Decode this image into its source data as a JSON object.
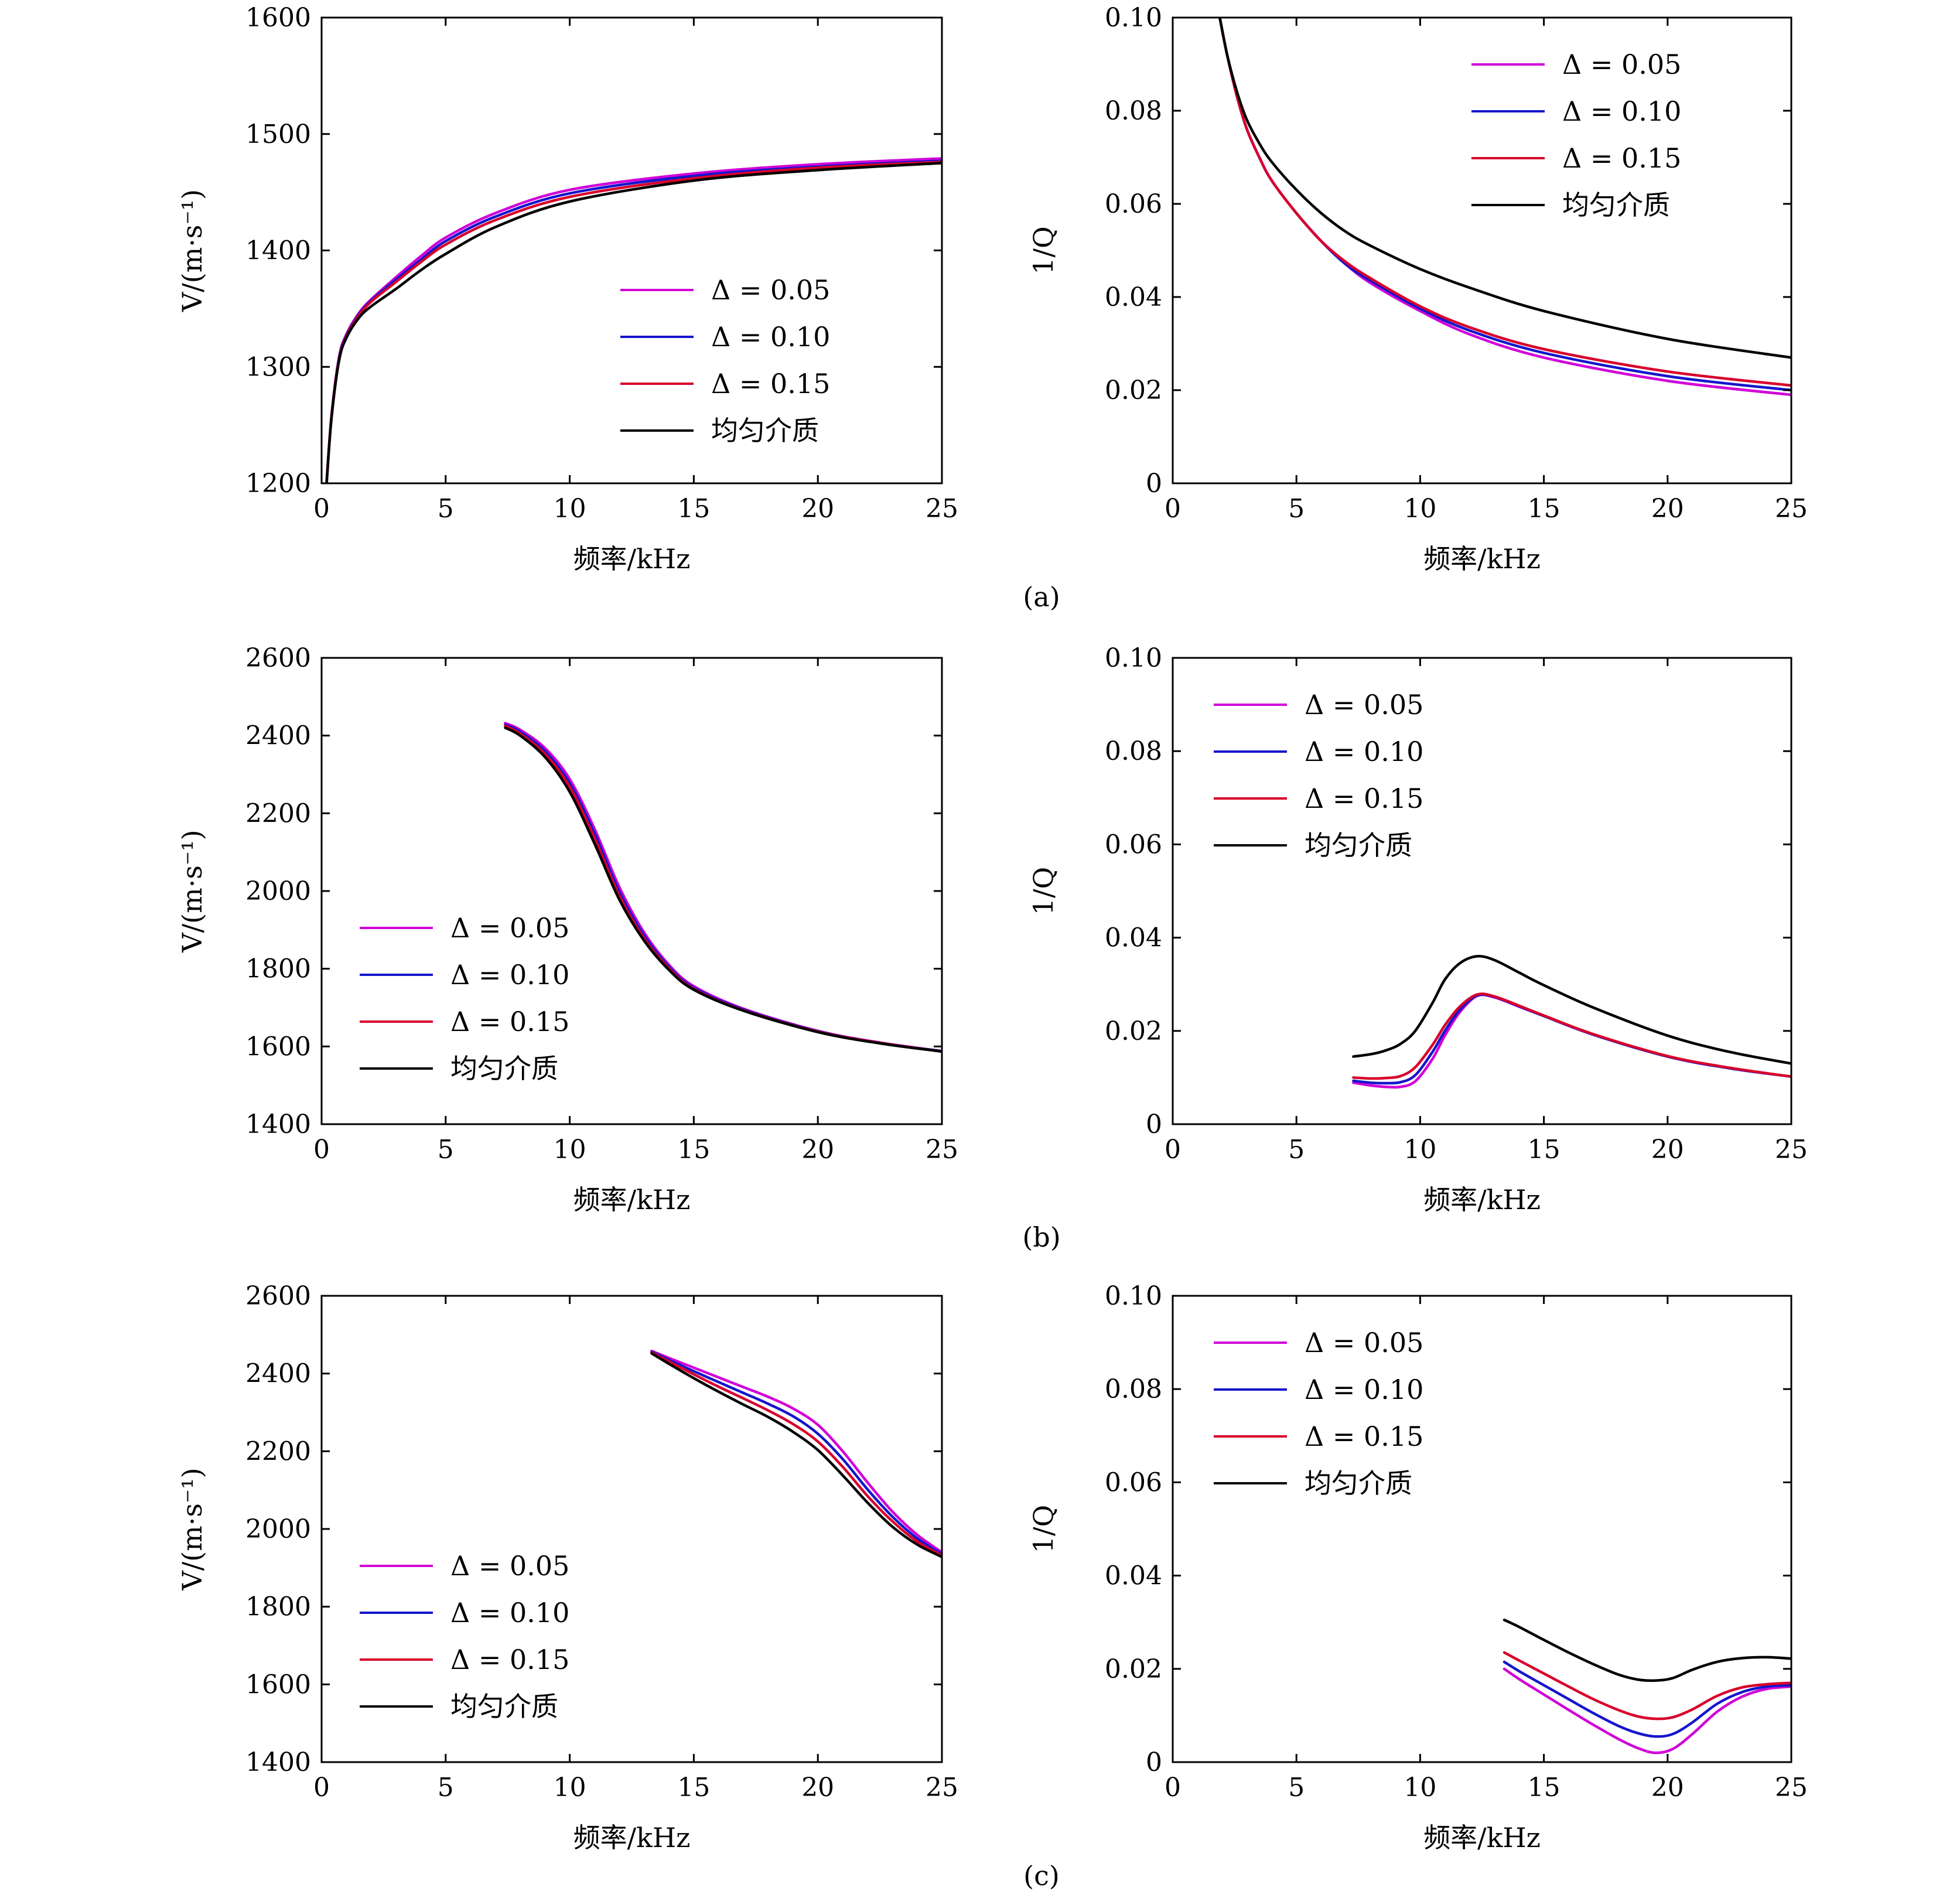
{
  "colors": {
    "delta_005": "#d100d8",
    "delta_010": "#1515cc",
    "delta_015": "#d8002a",
    "uniform": "#000000"
  },
  "captions": [
    "(a)",
    "(b)",
    "(c)"
  ],
  "chart_data": [
    {
      "id": "a-velocity",
      "type": "line",
      "row": 0,
      "col": 0,
      "xlabel": "频率/kHz",
      "ylabel": "V/(m·s⁻¹)",
      "xlim": [
        0,
        25
      ],
      "ylim": [
        1200,
        1600
      ],
      "xticks": [
        "0",
        "5",
        "10",
        "15",
        "20",
        "25"
      ],
      "yticks": [
        "1200",
        "1300",
        "1400",
        "1500",
        "1600"
      ],
      "xtick_values": [
        0,
        5,
        10,
        15,
        20,
        25
      ],
      "ytick_values": [
        1200,
        1300,
        1400,
        1500,
        1600
      ],
      "legend_pos": "lower-right",
      "series": [
        {
          "name": "Δ = 0.05",
          "color": "#d100d8",
          "x": [
            0.2,
            0.4,
            0.7,
            1,
            1.5,
            2,
            3,
            4,
            5,
            7,
            10,
            15,
            20,
            25
          ],
          "y": [
            1200,
            1258,
            1308,
            1328,
            1346,
            1358,
            1377,
            1395,
            1411,
            1432,
            1452,
            1466,
            1474,
            1479
          ]
        },
        {
          "name": "Δ = 0.10",
          "color": "#1515cc",
          "x": [
            0.2,
            0.4,
            0.7,
            1,
            1.5,
            2,
            3,
            4,
            5,
            7,
            10,
            15,
            20,
            25
          ],
          "y": [
            1200,
            1257,
            1307,
            1327,
            1345,
            1357,
            1375,
            1392,
            1408,
            1429,
            1449,
            1464,
            1472,
            1477
          ]
        },
        {
          "name": "Δ = 0.15",
          "color": "#d8002a",
          "x": [
            0.2,
            0.4,
            0.7,
            1,
            1.5,
            2,
            3,
            4,
            5,
            7,
            10,
            15,
            20,
            25
          ],
          "y": [
            1200,
            1257,
            1306,
            1326,
            1344,
            1356,
            1373,
            1390,
            1405,
            1426,
            1446,
            1462,
            1471,
            1476
          ]
        },
        {
          "name": "均匀介质",
          "color": "#000000",
          "x": [
            0.2,
            0.4,
            0.7,
            1,
            1.5,
            2,
            3,
            4,
            5,
            7,
            10,
            15,
            20,
            25
          ],
          "y": [
            1200,
            1256,
            1305,
            1325,
            1342,
            1352,
            1367,
            1383,
            1397,
            1420,
            1442,
            1460,
            1469,
            1475
          ]
        }
      ]
    },
    {
      "id": "a-attenuation",
      "type": "line",
      "row": 0,
      "col": 1,
      "xlabel": "频率/kHz",
      "ylabel": "1/Q",
      "xlim": [
        0,
        25
      ],
      "ylim": [
        0,
        0.1
      ],
      "xticks": [
        "0",
        "5",
        "10",
        "15",
        "20",
        "25"
      ],
      "yticks": [
        "0",
        "0.02",
        "0.04",
        "0.06",
        "0.08",
        "0.10"
      ],
      "xtick_values": [
        0,
        5,
        10,
        15,
        20,
        25
      ],
      "ytick_values": [
        0,
        0.02,
        0.04,
        0.06,
        0.08,
        0.1
      ],
      "legend_pos": "upper-right",
      "series": [
        {
          "name": "Δ = 0.05",
          "color": "#d100d8",
          "x": [
            1.9,
            2.2,
            2.6,
            3,
            3.5,
            4,
            5,
            6,
            7,
            8,
            10,
            12,
            15,
            20,
            25
          ],
          "y": [
            0.1,
            0.092,
            0.083,
            0.076,
            0.07,
            0.065,
            0.058,
            0.052,
            0.047,
            0.043,
            0.037,
            0.032,
            0.027,
            0.022,
            0.019
          ]
        },
        {
          "name": "Δ = 0.10",
          "color": "#1515cc",
          "x": [
            1.9,
            2.2,
            2.6,
            3,
            3.5,
            4,
            5,
            6,
            7,
            8,
            10,
            12,
            15,
            20,
            25
          ],
          "y": [
            0.1,
            0.092,
            0.083,
            0.076,
            0.07,
            0.065,
            0.058,
            0.052,
            0.047,
            0.0435,
            0.0375,
            0.0328,
            0.028,
            0.023,
            0.02
          ]
        },
        {
          "name": "Δ = 0.15",
          "color": "#d8002a",
          "x": [
            1.9,
            2.2,
            2.6,
            3,
            3.5,
            4,
            5,
            6,
            7,
            8,
            10,
            12,
            15,
            20,
            25
          ],
          "y": [
            0.1,
            0.092,
            0.083,
            0.076,
            0.07,
            0.065,
            0.058,
            0.052,
            0.0475,
            0.044,
            0.038,
            0.0335,
            0.0288,
            0.024,
            0.021
          ]
        },
        {
          "name": "均匀介质",
          "color": "#000000",
          "x": [
            1.9,
            2.2,
            2.6,
            3,
            3.5,
            4,
            5,
            6,
            7,
            8,
            10,
            12,
            15,
            20,
            25
          ],
          "y": [
            0.1,
            0.092,
            0.084,
            0.078,
            0.073,
            0.069,
            0.063,
            0.058,
            0.054,
            0.051,
            0.046,
            0.042,
            0.037,
            0.031,
            0.027
          ]
        }
      ]
    },
    {
      "id": "b-velocity",
      "type": "line",
      "row": 1,
      "col": 0,
      "xlabel": "频率/kHz",
      "ylabel": "V/(m·s⁻¹)",
      "xlim": [
        0,
        25
      ],
      "ylim": [
        1400,
        2600
      ],
      "xticks": [
        "0",
        "5",
        "10",
        "15",
        "20",
        "25"
      ],
      "yticks": [
        "1400",
        "1600",
        "1800",
        "2000",
        "2200",
        "2400",
        "2600"
      ],
      "xtick_values": [
        0,
        5,
        10,
        15,
        20,
        25
      ],
      "ytick_values": [
        1400,
        1600,
        1800,
        2000,
        2200,
        2400,
        2600
      ],
      "legend_pos": "lower-left",
      "series": [
        {
          "name": "Δ = 0.05",
          "color": "#d100d8",
          "x": [
            7.4,
            8,
            9,
            10,
            11,
            12,
            13,
            14,
            15,
            17,
            20,
            22.5,
            25
          ],
          "y": [
            2432,
            2415,
            2368,
            2288,
            2160,
            2010,
            1893,
            1810,
            1755,
            1697,
            1640,
            1610,
            1588
          ]
        },
        {
          "name": "Δ = 0.10",
          "color": "#1515cc",
          "x": [
            7.4,
            8,
            9,
            10,
            11,
            12,
            13,
            14,
            15,
            17,
            20,
            22.5,
            25
          ],
          "y": [
            2428,
            2410,
            2360,
            2277,
            2148,
            1998,
            1885,
            1805,
            1751,
            1695,
            1639,
            1609,
            1588
          ]
        },
        {
          "name": "Δ = 0.15",
          "color": "#d8002a",
          "x": [
            7.4,
            8,
            9,
            10,
            11,
            12,
            13,
            14,
            15,
            17,
            20,
            22.5,
            25
          ],
          "y": [
            2425,
            2405,
            2353,
            2268,
            2136,
            1988,
            1878,
            1801,
            1748,
            1693,
            1638,
            1609,
            1587
          ]
        },
        {
          "name": "均匀介质",
          "color": "#000000",
          "x": [
            7.4,
            8,
            9,
            10,
            11,
            12,
            13,
            14,
            15,
            17,
            20,
            22.5,
            25
          ],
          "y": [
            2420,
            2400,
            2345,
            2255,
            2122,
            1978,
            1872,
            1797,
            1746,
            1692,
            1637,
            1608,
            1587
          ]
        }
      ]
    },
    {
      "id": "b-attenuation",
      "type": "line",
      "row": 1,
      "col": 1,
      "xlabel": "频率/kHz",
      "ylabel": "1/Q",
      "xlim": [
        0,
        25
      ],
      "ylim": [
        0,
        0.1
      ],
      "xticks": [
        "0",
        "5",
        "10",
        "15",
        "20",
        "25"
      ],
      "yticks": [
        "0",
        "0.02",
        "0.04",
        "0.06",
        "0.08",
        "0.10"
      ],
      "xtick_values": [
        0,
        5,
        10,
        15,
        20,
        25
      ],
      "ytick_values": [
        0,
        0.02,
        0.04,
        0.06,
        0.08,
        0.1
      ],
      "legend_pos": "upper-left",
      "series": [
        {
          "name": "Δ = 0.05",
          "color": "#d100d8",
          "x": [
            7.3,
            8,
            8.6,
            9.2,
            9.8,
            10.5,
            11,
            11.6,
            12.3,
            13,
            14,
            15,
            17,
            20,
            22.5,
            25
          ],
          "y": [
            0.0089,
            0.0083,
            0.008,
            0.008,
            0.0092,
            0.014,
            0.019,
            0.024,
            0.0275,
            0.0272,
            0.0252,
            0.0232,
            0.0192,
            0.0145,
            0.012,
            0.0102
          ]
        },
        {
          "name": "Δ = 0.10",
          "color": "#1515cc",
          "x": [
            7.3,
            8,
            8.6,
            9.2,
            9.8,
            10.5,
            11,
            11.6,
            12.3,
            13,
            14,
            15,
            17,
            20,
            22.5,
            25
          ],
          "y": [
            0.0093,
            0.0089,
            0.0088,
            0.009,
            0.0105,
            0.0155,
            0.02,
            0.0245,
            0.0276,
            0.0273,
            0.0253,
            0.0232,
            0.0192,
            0.0145,
            0.012,
            0.0102
          ]
        },
        {
          "name": "Δ = 0.15",
          "color": "#d8002a",
          "x": [
            7.3,
            8,
            8.6,
            9.2,
            9.8,
            10.5,
            11,
            11.6,
            12.3,
            13,
            14,
            15,
            17,
            20,
            22.5,
            25
          ],
          "y": [
            0.01,
            0.0098,
            0.0099,
            0.0103,
            0.0122,
            0.017,
            0.0212,
            0.0252,
            0.0278,
            0.0274,
            0.0254,
            0.0233,
            0.0193,
            0.0146,
            0.0121,
            0.0102
          ]
        },
        {
          "name": "均匀介质",
          "color": "#000000",
          "x": [
            7.3,
            8,
            8.6,
            9.2,
            9.8,
            10.5,
            11,
            11.6,
            12.3,
            13,
            14,
            15,
            17,
            20,
            22.5,
            25
          ],
          "y": [
            0.0145,
            0.015,
            0.0158,
            0.0172,
            0.02,
            0.026,
            0.031,
            0.0345,
            0.036,
            0.0352,
            0.0325,
            0.0298,
            0.025,
            0.019,
            0.0155,
            0.013
          ]
        }
      ]
    },
    {
      "id": "c-velocity",
      "type": "line",
      "row": 2,
      "col": 0,
      "xlabel": "频率/kHz",
      "ylabel": "V/(m·s⁻¹)",
      "xlim": [
        0,
        25
      ],
      "ylim": [
        1400,
        2600
      ],
      "xticks": [
        "0",
        "5",
        "10",
        "15",
        "20",
        "25"
      ],
      "yticks": [
        "1400",
        "1600",
        "1800",
        "2000",
        "2200",
        "2400",
        "2600"
      ],
      "xtick_values": [
        0,
        5,
        10,
        15,
        20,
        25
      ],
      "ytick_values": [
        1400,
        1600,
        1800,
        2000,
        2200,
        2400,
        2600
      ],
      "legend_pos": "lower-left",
      "series": [
        {
          "name": "Δ = 0.05",
          "color": "#d100d8",
          "x": [
            13.3,
            14,
            15,
            16,
            17,
            18,
            19,
            20,
            21,
            22,
            23,
            24,
            25
          ],
          "y": [
            2458,
            2440,
            2415,
            2390,
            2365,
            2340,
            2310,
            2268,
            2200,
            2120,
            2045,
            1985,
            1940
          ]
        },
        {
          "name": "Δ = 0.10",
          "color": "#1515cc",
          "x": [
            13.3,
            14,
            15,
            16,
            17,
            18,
            19,
            20,
            21,
            22,
            23,
            24,
            25
          ],
          "y": [
            2456,
            2435,
            2406,
            2378,
            2350,
            2322,
            2290,
            2245,
            2180,
            2102,
            2032,
            1976,
            1935
          ]
        },
        {
          "name": "Δ = 0.15",
          "color": "#d8002a",
          "x": [
            13.3,
            14,
            15,
            16,
            17,
            18,
            19,
            20,
            21,
            22,
            23,
            24,
            25
          ],
          "y": [
            2454,
            2431,
            2398,
            2366,
            2336,
            2305,
            2270,
            2225,
            2160,
            2085,
            2020,
            1968,
            1932
          ]
        },
        {
          "name": "均匀介质",
          "color": "#000000",
          "x": [
            13.3,
            14,
            15,
            16,
            17,
            18,
            19,
            20,
            21,
            22,
            23,
            24,
            25
          ],
          "y": [
            2452,
            2425,
            2388,
            2353,
            2320,
            2288,
            2250,
            2203,
            2138,
            2068,
            2006,
            1960,
            1928
          ]
        }
      ]
    },
    {
      "id": "c-attenuation",
      "type": "line",
      "row": 2,
      "col": 1,
      "xlabel": "频率/kHz",
      "ylabel": "1/Q",
      "xlim": [
        0,
        25
      ],
      "ylim": [
        0,
        0.1
      ],
      "xticks": [
        "0",
        "5",
        "10",
        "15",
        "20",
        "25"
      ],
      "yticks": [
        "0",
        "0.02",
        "0.04",
        "0.06",
        "0.08",
        "0.10"
      ],
      "xtick_values": [
        0,
        5,
        10,
        15,
        20,
        25
      ],
      "ytick_values": [
        0,
        0.02,
        0.04,
        0.06,
        0.08,
        0.1
      ],
      "legend_pos": "upper-left",
      "series": [
        {
          "name": "Δ = 0.05",
          "color": "#d100d8",
          "x": [
            13.4,
            14,
            15,
            16,
            17,
            18,
            18.8,
            19.5,
            20.2,
            21,
            22,
            23,
            24,
            25
          ],
          "y": [
            0.02,
            0.0178,
            0.0145,
            0.0112,
            0.008,
            0.005,
            0.003,
            0.002,
            0.0028,
            0.006,
            0.0108,
            0.014,
            0.0157,
            0.0162
          ]
        },
        {
          "name": "Δ = 0.10",
          "color": "#1515cc",
          "x": [
            13.4,
            14,
            15,
            16,
            17,
            18,
            18.8,
            19.5,
            20.2,
            21,
            22,
            23,
            24,
            25
          ],
          "y": [
            0.0215,
            0.0195,
            0.0165,
            0.0135,
            0.0105,
            0.0078,
            0.0062,
            0.0055,
            0.006,
            0.0085,
            0.0125,
            0.015,
            0.0162,
            0.0165
          ]
        },
        {
          "name": "Δ = 0.15",
          "color": "#d8002a",
          "x": [
            13.4,
            14,
            15,
            16,
            17,
            18,
            18.8,
            19.5,
            20.2,
            21,
            22,
            23,
            24,
            25
          ],
          "y": [
            0.0235,
            0.0218,
            0.019,
            0.0162,
            0.0135,
            0.0112,
            0.0098,
            0.0093,
            0.0096,
            0.0113,
            0.0142,
            0.016,
            0.0167,
            0.017
          ]
        },
        {
          "name": "均匀介质",
          "color": "#000000",
          "x": [
            13.4,
            14,
            15,
            16,
            17,
            18,
            18.8,
            19.5,
            20.2,
            21,
            22,
            23,
            24,
            25
          ],
          "y": [
            0.0305,
            0.029,
            0.0262,
            0.0235,
            0.021,
            0.0188,
            0.0177,
            0.0175,
            0.018,
            0.0198,
            0.0215,
            0.0223,
            0.0225,
            0.0222
          ]
        }
      ]
    }
  ]
}
